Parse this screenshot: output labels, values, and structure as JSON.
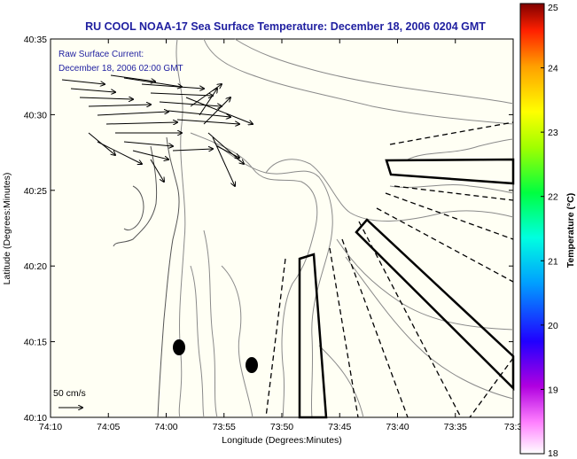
{
  "title": "RU COOL  NOAA-17  Sea Surface Temperature:  December 18, 2006 0204 GMT",
  "current_note": {
    "line1": "Raw Surface Current:",
    "line2": "December 18, 2006 02:00 GMT"
  },
  "xlabel": "Longitude (Degrees:Minutes)",
  "ylabel": "Latitude (Degrees:Minutes)",
  "x_ticks": [
    "74:10",
    "74:05",
    "74:00",
    "73:55",
    "73:50",
    "73:45",
    "73:40",
    "73:35",
    "73:3"
  ],
  "y_ticks": [
    "40:35",
    "40:30",
    "40:25",
    "40:20",
    "40:15",
    "40:10"
  ],
  "scale_label": "50 cm/s",
  "colorbar": {
    "title": "Temperature (°C)",
    "ticks": [
      "25",
      "24",
      "23",
      "22",
      "21",
      "20",
      "19",
      "18"
    ],
    "min": 18,
    "max": 25
  },
  "colors": {
    "title": "#1f1fa0",
    "background": "#fffff4",
    "contour": "#7a7a7a"
  }
}
